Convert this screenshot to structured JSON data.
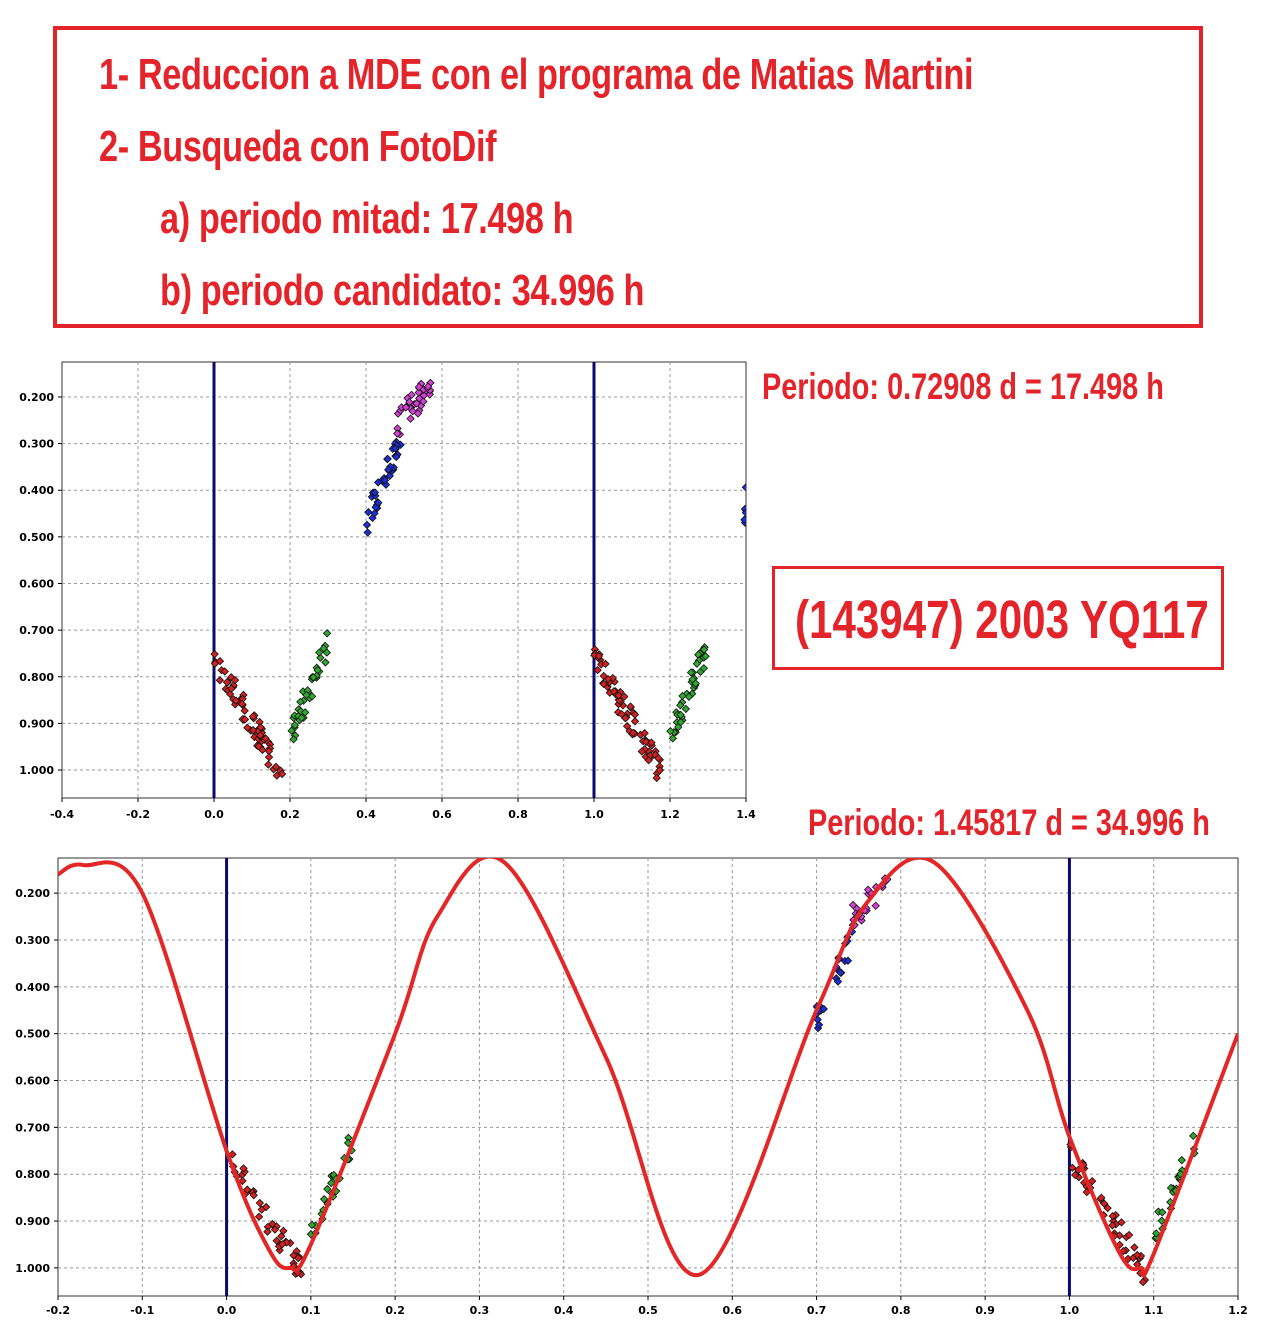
{
  "notes": {
    "line1": "1- Reduccion a MDE con el programa de Matias Martini",
    "line2": "2- Busqueda con FotoDif",
    "line3": "a) periodo mitad: 17.498 h",
    "line4": "b) periodo candidato: 34.996 h"
  },
  "captions": {
    "period_half": "Periodo: 0.72908 d = 17.498 h",
    "period_full": "Periodo: 1.45817 d = 34.996 h"
  },
  "asteroid": {
    "name": "(143947) 2003 YQ117"
  },
  "colors": {
    "accent": "#e3242b",
    "marker_line": "#0a0a6e",
    "series": {
      "red": "#d42020",
      "green": "#2ea82e",
      "blue": "#1c2ed6",
      "magenta": "#d640d6"
    },
    "fit_curve": "#e32626"
  },
  "chart_data": [
    {
      "type": "scatter",
      "title": "",
      "xlabel": "",
      "ylabel": "",
      "xlim": [
        -0.4,
        1.4
      ],
      "ylim": [
        0.125,
        1.06
      ],
      "y_inverted": true,
      "grid": true,
      "xticks": [
        "-0.4",
        "-0.2",
        "0.0",
        "0.2",
        "0.4",
        "0.6",
        "0.8",
        "1.0",
        "1.2",
        "1.4"
      ],
      "yticks": [
        "0.200",
        "0.300",
        "0.400",
        "0.500",
        "0.600",
        "0.700",
        "0.800",
        "0.900",
        "1.000"
      ],
      "vertical_markers": [
        0.0,
        1.0
      ],
      "series": [
        {
          "color": "red",
          "x_range": [
            0.0,
            0.18
          ],
          "y_start": 0.76,
          "y_end": 1.01
        },
        {
          "color": "green",
          "x_range": [
            0.2,
            0.3
          ],
          "y_start": 0.93,
          "y_end": 0.73
        },
        {
          "color": "blue",
          "x_range": [
            0.4,
            0.5
          ],
          "y_start": 0.47,
          "y_end": 0.27
        },
        {
          "color": "magenta",
          "x_range": [
            0.48,
            0.57
          ],
          "y_start": 0.26,
          "y_end": 0.175
        },
        {
          "color": "red",
          "x_range": [
            1.0,
            1.18
          ],
          "y_start": 0.76,
          "y_end": 1.01
        },
        {
          "color": "green",
          "x_range": [
            1.2,
            1.3
          ],
          "y_start": 0.93,
          "y_end": 0.73
        },
        {
          "color": "blue",
          "x_range": [
            1.395,
            1.4
          ],
          "y_start": 0.46,
          "y_end": 0.42
        }
      ]
    },
    {
      "type": "scatter",
      "title": "",
      "xlabel": "",
      "ylabel": "",
      "xlim": [
        -0.2,
        1.2
      ],
      "ylim": [
        0.125,
        1.06
      ],
      "y_inverted": true,
      "grid": true,
      "xticks": [
        "-0.2",
        "-0.1",
        "0.0",
        "0.1",
        "0.2",
        "0.3",
        "0.4",
        "0.5",
        "0.6",
        "0.7",
        "0.8",
        "0.9",
        "1.0",
        "1.1",
        "1.2"
      ],
      "yticks": [
        "0.200",
        "0.300",
        "0.400",
        "0.500",
        "0.600",
        "0.700",
        "0.800",
        "0.900",
        "1.000"
      ],
      "vertical_markers": [
        0.0,
        1.0
      ],
      "series": [
        {
          "color": "red",
          "x_range": [
            0.0,
            0.09
          ],
          "y_start": 0.76,
          "y_end": 1.01
        },
        {
          "color": "green",
          "x_range": [
            0.1,
            0.15
          ],
          "y_start": 0.93,
          "y_end": 0.73
        },
        {
          "color": "blue",
          "x_range": [
            0.7,
            0.75
          ],
          "y_start": 0.47,
          "y_end": 0.27
        },
        {
          "color": "magenta",
          "x_range": [
            0.74,
            0.785
          ],
          "y_start": 0.26,
          "y_end": 0.175
        },
        {
          "color": "red",
          "x_range": [
            1.0,
            1.09
          ],
          "y_start": 0.76,
          "y_end": 1.01
        },
        {
          "color": "green",
          "x_range": [
            1.1,
            1.15
          ],
          "y_start": 0.93,
          "y_end": 0.73
        }
      ],
      "fit_curve": {
        "x": [
          -0.2,
          -0.17,
          -0.1,
          0.0,
          0.05,
          0.075,
          0.1,
          0.2,
          0.25,
          0.33,
          0.45,
          0.56,
          0.7,
          0.76,
          0.84,
          0.95,
          1.0,
          1.06,
          1.085,
          1.1,
          1.2
        ],
        "y": [
          0.16,
          0.14,
          0.2,
          0.75,
          0.96,
          1.0,
          0.95,
          0.5,
          0.25,
          0.135,
          0.55,
          1.015,
          0.45,
          0.22,
          0.135,
          0.45,
          0.72,
          0.97,
          1.0,
          0.97,
          0.5
        ]
      }
    }
  ]
}
